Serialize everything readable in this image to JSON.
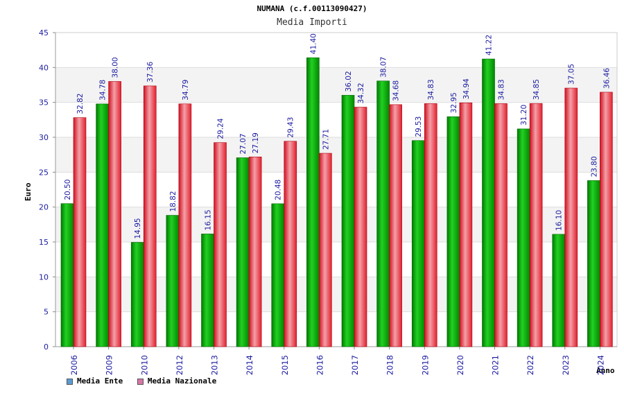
{
  "chart_data": {
    "type": "bar",
    "title": "NUMANA (c.f.00113090427)",
    "subtitle": "Media Importi",
    "xlabel": "Anno",
    "ylabel": "Euro",
    "ylim": [
      0,
      45
    ],
    "yticks": [
      0,
      5,
      10,
      15,
      20,
      25,
      30,
      35,
      40,
      45
    ],
    "categories": [
      "2006",
      "2009",
      "2010",
      "2012",
      "2013",
      "2014",
      "2015",
      "2016",
      "2017",
      "2018",
      "2019",
      "2020",
      "2021",
      "2022",
      "2023",
      "2024"
    ],
    "series": [
      {
        "name": "Media Ente",
        "color": "#1a9f1a",
        "legend_color": "#5b9bd5",
        "values": [
          20.5,
          34.78,
          14.95,
          18.82,
          16.15,
          27.07,
          20.48,
          41.4,
          36.02,
          38.07,
          29.53,
          32.95,
          41.22,
          31.2,
          16.1,
          23.8
        ],
        "labels": [
          "20.50",
          "34.78",
          "14.95",
          "18.82",
          "16.15",
          "27.07",
          "20.48",
          "41.40",
          "36.02",
          "38.07",
          "29.53",
          "32.95",
          "41.22",
          "31.20",
          "16.10",
          "23.80"
        ]
      },
      {
        "name": "Media Nazionale",
        "color": "#e8374a",
        "legend_color": "#d975a6",
        "values": [
          32.82,
          38.0,
          37.36,
          34.79,
          29.24,
          27.19,
          29.43,
          27.71,
          34.32,
          34.68,
          34.83,
          34.94,
          34.83,
          34.85,
          37.05,
          36.46
        ],
        "labels": [
          "32.82",
          "38.00",
          "37.36",
          "34.79",
          "29.24",
          "27.19",
          "29.43",
          "27.71",
          "34.32",
          "34.68",
          "34.83",
          "34.94",
          "34.83",
          "34.85",
          "37.05",
          "36.46"
        ]
      }
    ],
    "grid": true,
    "legend_position": "bottom-left"
  }
}
